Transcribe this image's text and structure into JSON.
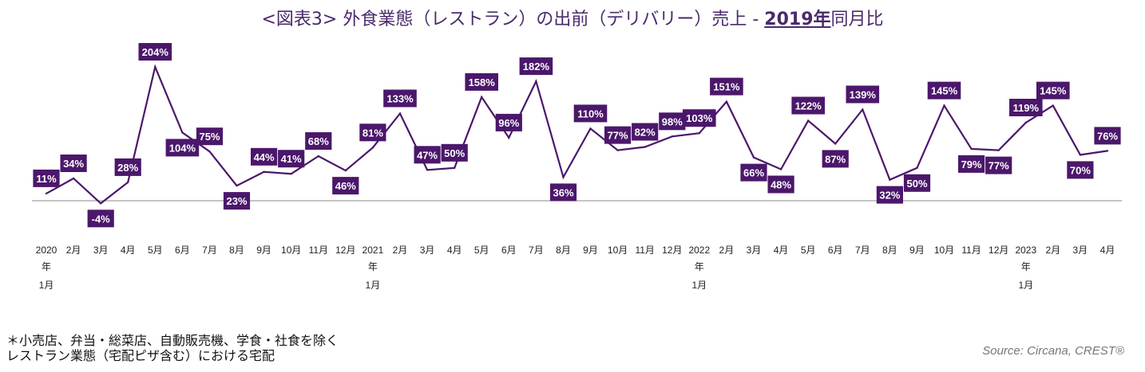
{
  "title": {
    "prefix": "<図表3> 外食業態（レストラン）の出前（デリバリー）売上 - ",
    "highlight": "2019年",
    "suffix": "同月比"
  },
  "note": {
    "line1": "＊小売店、弁当・総菜店、自動販売機、学食・社食を除く",
    "line2": "レストラン業態（宅配ピザ含む）における宅配"
  },
  "source": "Source: Circana, CREST®",
  "chart_data": {
    "type": "line",
    "categories": [
      "2020 年 1月",
      "2月",
      "3月",
      "4月",
      "5月",
      "6月",
      "7月",
      "8月",
      "9月",
      "10月",
      "11月",
      "12月",
      "2021 年 1月",
      "2月",
      "3月",
      "4月",
      "5月",
      "6月",
      "7月",
      "8月",
      "9月",
      "10月",
      "11月",
      "12月",
      "2022 年 1月",
      "2月",
      "3月",
      "4月",
      "5月",
      "6月",
      "7月",
      "8月",
      "9月",
      "10月",
      "11月",
      "12月",
      "2023 年 1月",
      "2月",
      "3月",
      "4月"
    ],
    "tick_labels": [
      [
        "2020",
        "年",
        "1月"
      ],
      [
        "2月"
      ],
      [
        "3月"
      ],
      [
        "4月"
      ],
      [
        "5月"
      ],
      [
        "6月"
      ],
      [
        "7月"
      ],
      [
        "8月"
      ],
      [
        "9月"
      ],
      [
        "10月"
      ],
      [
        "11月"
      ],
      [
        "12月"
      ],
      [
        "2021",
        "年",
        "1月"
      ],
      [
        "2月"
      ],
      [
        "3月"
      ],
      [
        "4月"
      ],
      [
        "5月"
      ],
      [
        "6月"
      ],
      [
        "7月"
      ],
      [
        "8月"
      ],
      [
        "9月"
      ],
      [
        "10月"
      ],
      [
        "11月"
      ],
      [
        "12月"
      ],
      [
        "2022",
        "年",
        "1月"
      ],
      [
        "2月"
      ],
      [
        "3月"
      ],
      [
        "4月"
      ],
      [
        "5月"
      ],
      [
        "6月"
      ],
      [
        "7月"
      ],
      [
        "8月"
      ],
      [
        "9月"
      ],
      [
        "10月"
      ],
      [
        "11月"
      ],
      [
        "12月"
      ],
      [
        "2023",
        "年",
        "1月"
      ],
      [
        "2月"
      ],
      [
        "3月"
      ],
      [
        "4月"
      ]
    ],
    "values": [
      11,
      34,
      -4,
      28,
      204,
      104,
      75,
      23,
      44,
      41,
      68,
      46,
      81,
      133,
      47,
      50,
      158,
      96,
      182,
      36,
      110,
      77,
      82,
      98,
      103,
      151,
      66,
      48,
      122,
      87,
      139,
      32,
      50,
      145,
      79,
      77,
      119,
      145,
      70,
      76
    ],
    "data_labels": [
      "11%",
      "34%",
      "-4%",
      "28%",
      "204%",
      "104%",
      "75%",
      "23%",
      "44%",
      "41%",
      "68%",
      "46%",
      "81%",
      "133%",
      "47%",
      "50%",
      "158%",
      "96%",
      "182%",
      "36%",
      "110%",
      "77%",
      "82%",
      "98%",
      "103%",
      "151%",
      "66%",
      "48%",
      "122%",
      "87%",
      "139%",
      "32%",
      "50%",
      "145%",
      "79%",
      "77%",
      "119%",
      "145%",
      "70%",
      "76%"
    ],
    "label_positions": [
      "above",
      "above",
      "below",
      "above",
      "above",
      "below",
      "above",
      "below",
      "above",
      "above",
      "above",
      "below",
      "above",
      "above",
      "above",
      "above",
      "above",
      "above",
      "above",
      "below",
      "above",
      "above",
      "above",
      "above",
      "above",
      "above",
      "below",
      "below",
      "above",
      "below",
      "above",
      "below",
      "below",
      "above",
      "below",
      "below",
      "above",
      "above",
      "below",
      "above"
    ],
    "ylim": [
      -20,
      220
    ],
    "zero_line": true,
    "grid": false,
    "xlabel": "",
    "ylabel": "",
    "colors": {
      "line": "#4b176b",
      "label_bg": "#4b176b",
      "label_text": "#ffffff",
      "zero_line": "#888888"
    }
  }
}
